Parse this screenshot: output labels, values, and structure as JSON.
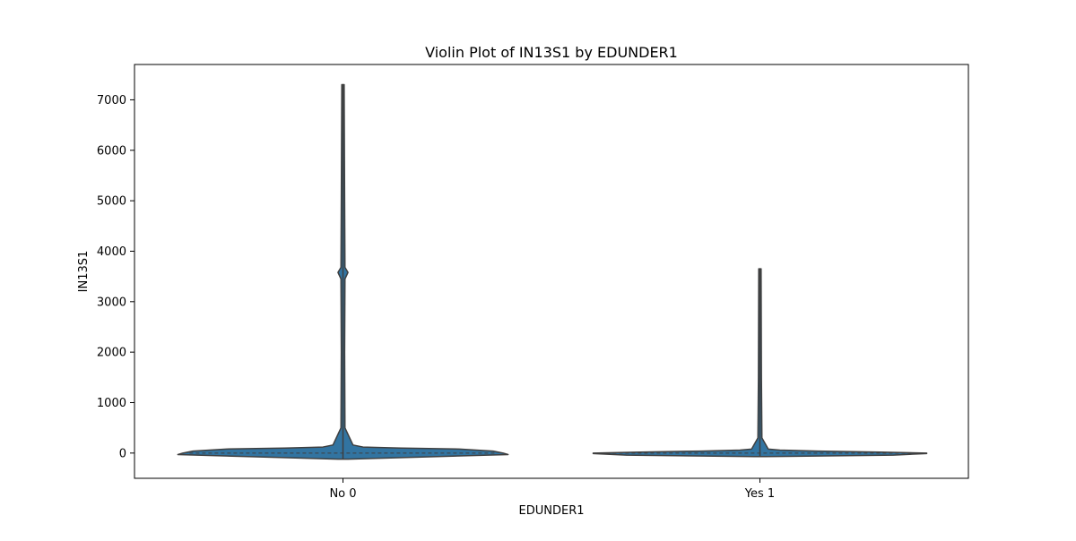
{
  "chart_data": {
    "type": "violin",
    "title": "Violin Plot of IN13S1 by EDUNDER1",
    "xlabel": "EDUNDER1",
    "ylabel": "IN13S1",
    "categories": [
      "No 0",
      "Yes 1"
    ],
    "ylim": [
      -500,
      7700
    ],
    "yticks": [
      0,
      1000,
      2000,
      3000,
      4000,
      5000,
      6000,
      7000
    ],
    "ytick_labels": [
      "0",
      "1000",
      "2000",
      "3000",
      "4000",
      "5000",
      "6000",
      "7000"
    ],
    "grid": false,
    "legend": "none",
    "colors": {
      "fill": "#3274a1",
      "stroke": "#3f3f3f"
    },
    "violins": [
      {
        "category": "No 0",
        "min": -120,
        "max": 7300,
        "median": 0,
        "density": [
          {
            "y": -120,
            "w": 0.03
          },
          {
            "y": -80,
            "w": 0.45
          },
          {
            "y": -30,
            "w": 0.99
          },
          {
            "y": 0,
            "w": 0.96
          },
          {
            "y": 40,
            "w": 0.9
          },
          {
            "y": 80,
            "w": 0.7
          },
          {
            "y": 100,
            "w": 0.35
          },
          {
            "y": 120,
            "w": 0.12
          },
          {
            "y": 160,
            "w": 0.06
          },
          {
            "y": 500,
            "w": 0.012
          },
          {
            "y": 2000,
            "w": 0.01
          },
          {
            "y": 3450,
            "w": 0.012
          },
          {
            "y": 3580,
            "w": 0.03
          },
          {
            "y": 3680,
            "w": 0.012
          },
          {
            "y": 5000,
            "w": 0.01
          },
          {
            "y": 7300,
            "w": 0.007
          }
        ]
      },
      {
        "category": "Yes 1",
        "min": -70,
        "max": 3650,
        "median": 0,
        "density": [
          {
            "y": -70,
            "w": 0.03
          },
          {
            "y": -40,
            "w": 0.8
          },
          {
            "y": -10,
            "w": 1.0
          },
          {
            "y": 0,
            "w": 1.0
          },
          {
            "y": 20,
            "w": 0.72
          },
          {
            "y": 40,
            "w": 0.35
          },
          {
            "y": 60,
            "w": 0.12
          },
          {
            "y": 80,
            "w": 0.05
          },
          {
            "y": 300,
            "w": 0.012
          },
          {
            "y": 1500,
            "w": 0.009
          },
          {
            "y": 3650,
            "w": 0.007
          }
        ]
      }
    ]
  }
}
